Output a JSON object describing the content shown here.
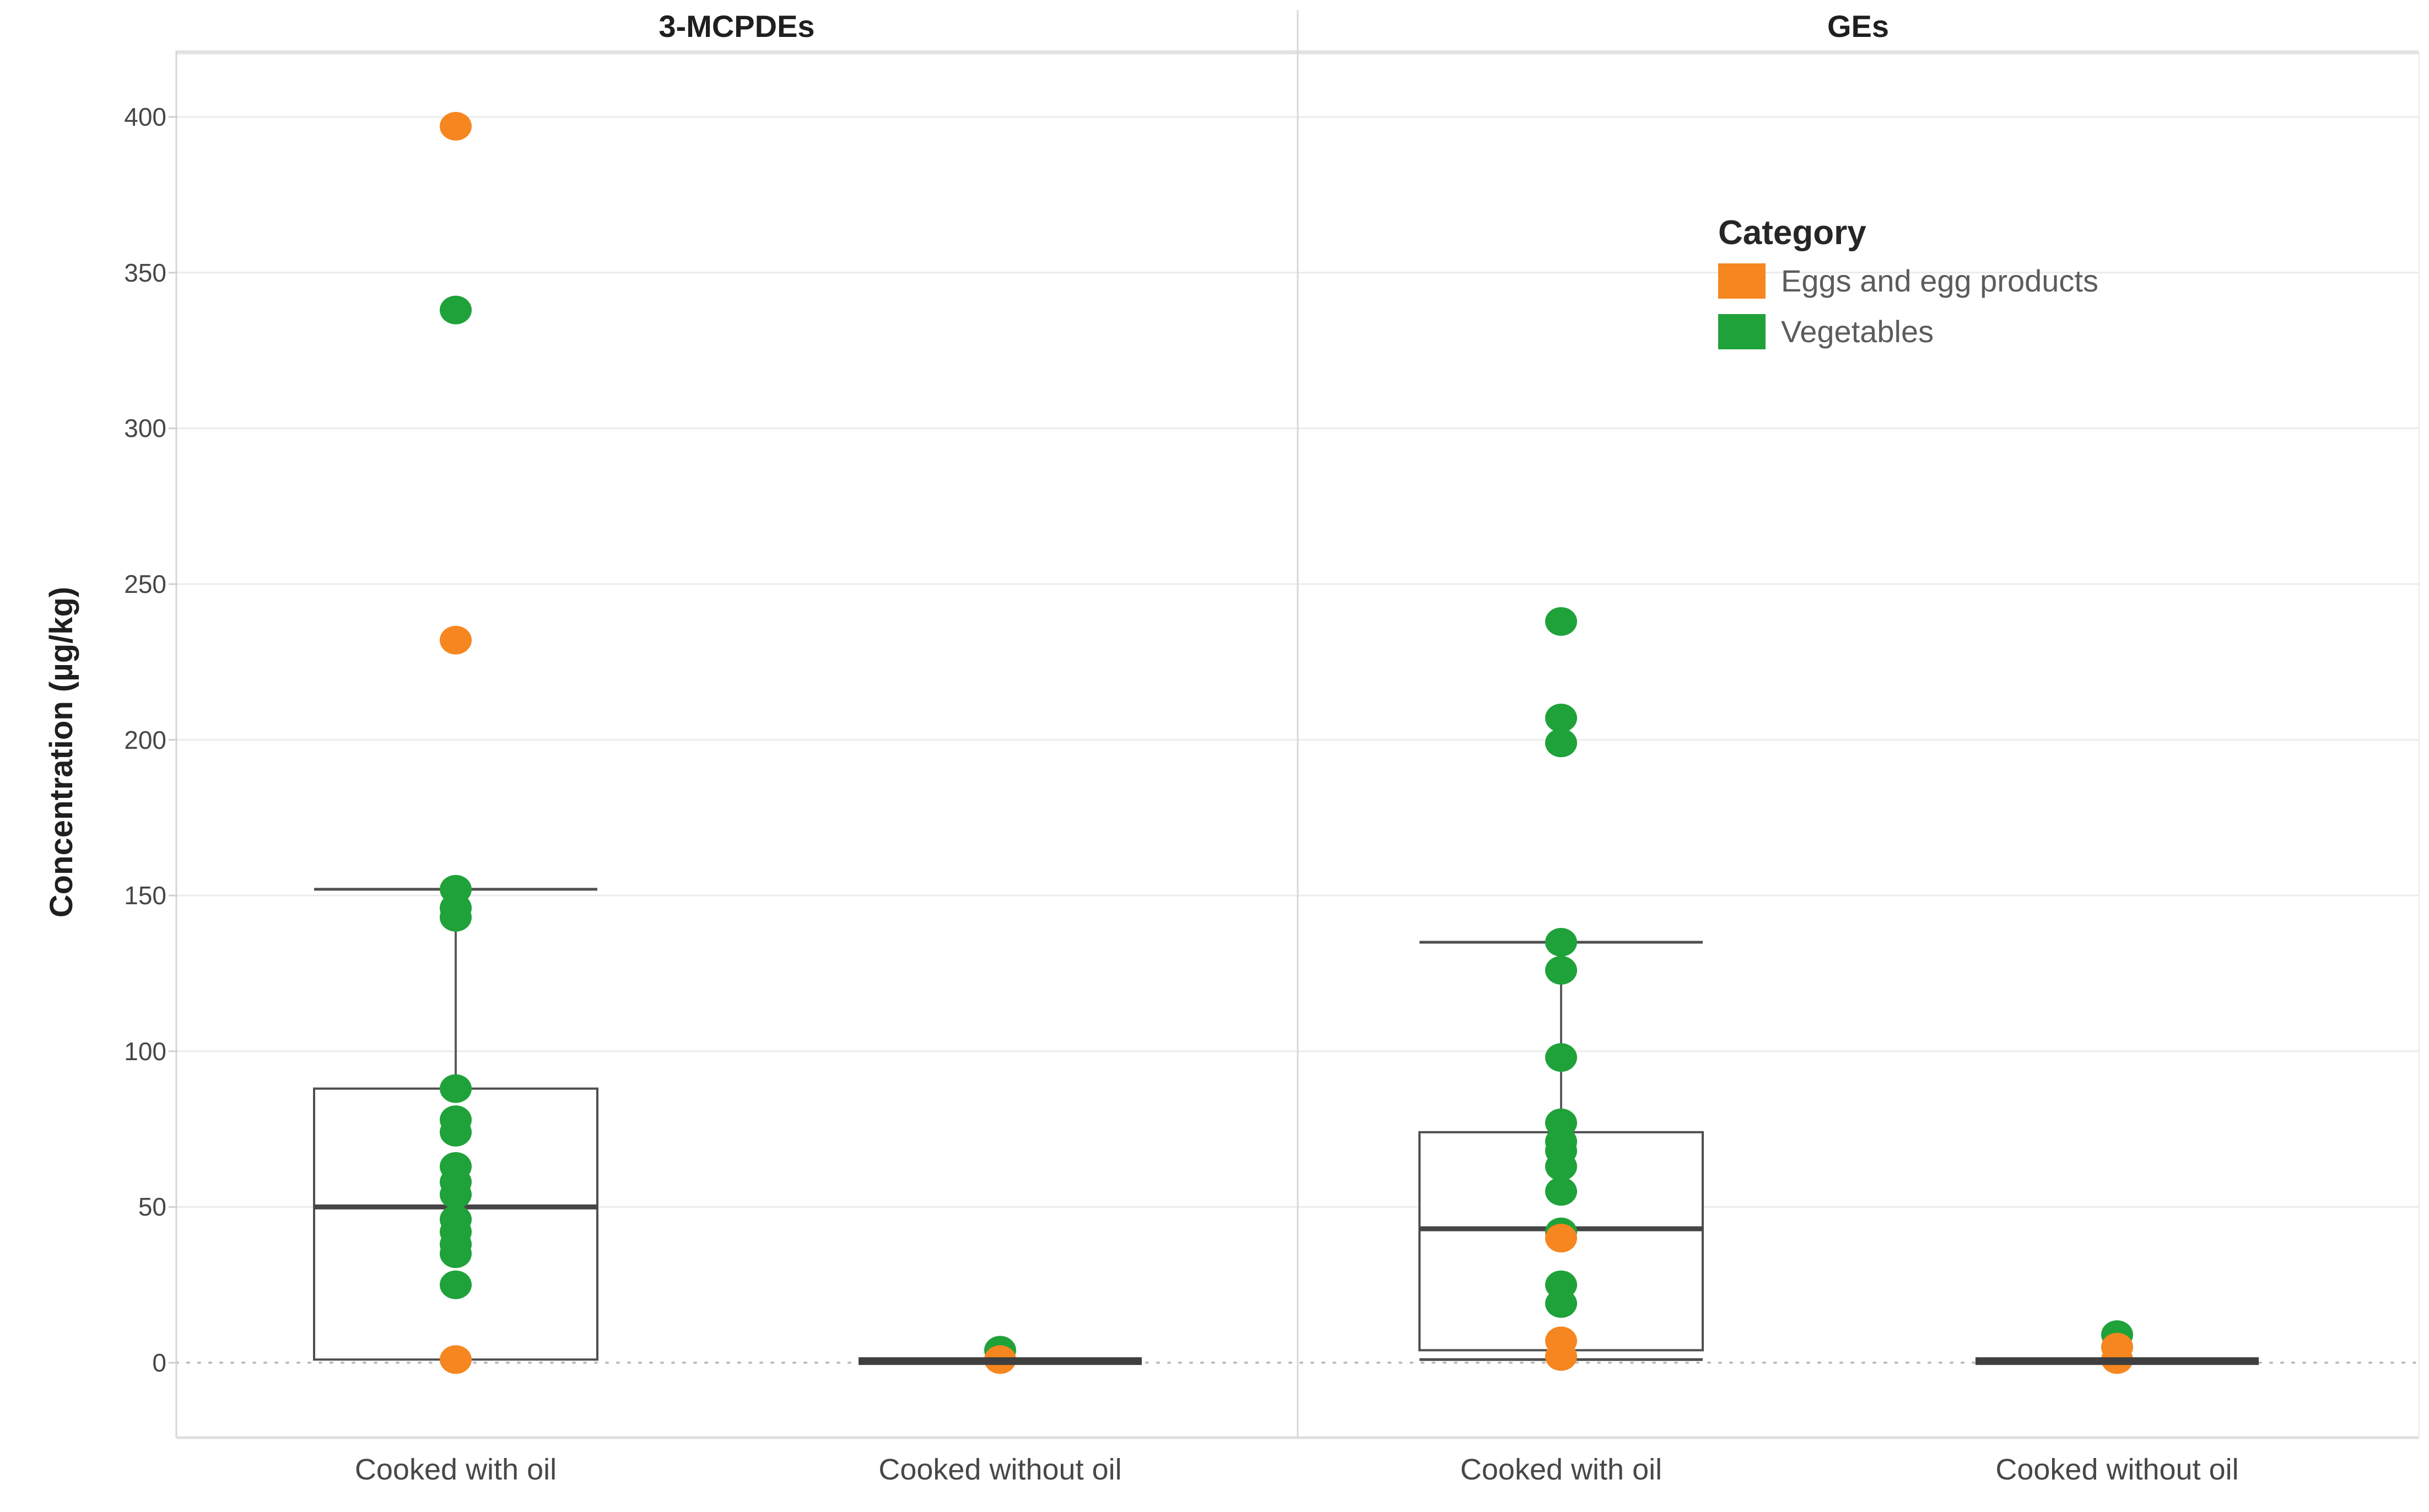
{
  "chart_data": {
    "type": "boxplot-scatter",
    "ylabel": "Concentration (µg/kg)",
    "yticks": [
      0,
      50,
      100,
      150,
      200,
      250,
      300,
      350,
      400
    ],
    "yrange": [
      0,
      400
    ],
    "grid": true,
    "zero_line_style": "dotted",
    "legend_position": "top-right-of-second-panel",
    "legend": {
      "title": "Category",
      "items": [
        {
          "id": "egg",
          "label": "Eggs and egg products",
          "color": "#F6861F"
        },
        {
          "id": "veg",
          "label": "Vegetables",
          "color": "#1FA23A"
        }
      ]
    },
    "panels": [
      {
        "title": "3-MCPDEs",
        "groups": [
          {
            "label": "Cooked with oil",
            "box": {
              "whisker_low": 1,
              "q1": 1,
              "median": 50,
              "q3": 88,
              "whisker_high": 152,
              "collapsed": false
            },
            "points": [
              {
                "category": "veg",
                "value": 338
              },
              {
                "category": "veg",
                "value": 152
              },
              {
                "category": "veg",
                "value": 146
              },
              {
                "category": "veg",
                "value": 143
              },
              {
                "category": "veg",
                "value": 88
              },
              {
                "category": "veg",
                "value": 78
              },
              {
                "category": "veg",
                "value": 74
              },
              {
                "category": "veg",
                "value": 63
              },
              {
                "category": "veg",
                "value": 58
              },
              {
                "category": "veg",
                "value": 54
              },
              {
                "category": "veg",
                "value": 46
              },
              {
                "category": "veg",
                "value": 42
              },
              {
                "category": "veg",
                "value": 38
              },
              {
                "category": "veg",
                "value": 35
              },
              {
                "category": "veg",
                "value": 25
              },
              {
                "category": "egg",
                "value": 397
              },
              {
                "category": "egg",
                "value": 232
              },
              {
                "category": "egg",
                "value": 1
              }
            ]
          },
          {
            "label": "Cooked without oil",
            "box": {
              "whisker_low": 0.5,
              "q1": 0.5,
              "median": 0.5,
              "q3": 0.5,
              "whisker_high": 0.5,
              "collapsed": true
            },
            "points": [
              {
                "category": "veg",
                "value": 4
              },
              {
                "category": "egg",
                "value": 1
              }
            ]
          }
        ]
      },
      {
        "title": "GEs",
        "groups": [
          {
            "label": "Cooked with oil",
            "box": {
              "whisker_low": 1,
              "q1": 4,
              "median": 43,
              "q3": 74,
              "whisker_high": 135,
              "collapsed": false
            },
            "points": [
              {
                "category": "veg",
                "value": 238
              },
              {
                "category": "veg",
                "value": 207
              },
              {
                "category": "veg",
                "value": 199
              },
              {
                "category": "veg",
                "value": 135
              },
              {
                "category": "veg",
                "value": 126
              },
              {
                "category": "veg",
                "value": 98
              },
              {
                "category": "veg",
                "value": 77
              },
              {
                "category": "veg",
                "value": 71
              },
              {
                "category": "veg",
                "value": 68
              },
              {
                "category": "veg",
                "value": 63
              },
              {
                "category": "veg",
                "value": 55
              },
              {
                "category": "veg",
                "value": 42
              },
              {
                "category": "veg",
                "value": 25
              },
              {
                "category": "veg",
                "value": 19
              },
              {
                "category": "egg",
                "value": 40
              },
              {
                "category": "egg",
                "value": 7
              },
              {
                "category": "egg",
                "value": 2
              }
            ]
          },
          {
            "label": "Cooked without oil",
            "box": {
              "whisker_low": 0.5,
              "q1": 0.5,
              "median": 0.5,
              "q3": 0.5,
              "whisker_high": 0.5,
              "collapsed": true
            },
            "points": [
              {
                "category": "veg",
                "value": 9
              },
              {
                "category": "egg",
                "value": 5
              },
              {
                "category": "egg",
                "value": 1
              }
            ]
          }
        ]
      }
    ]
  }
}
